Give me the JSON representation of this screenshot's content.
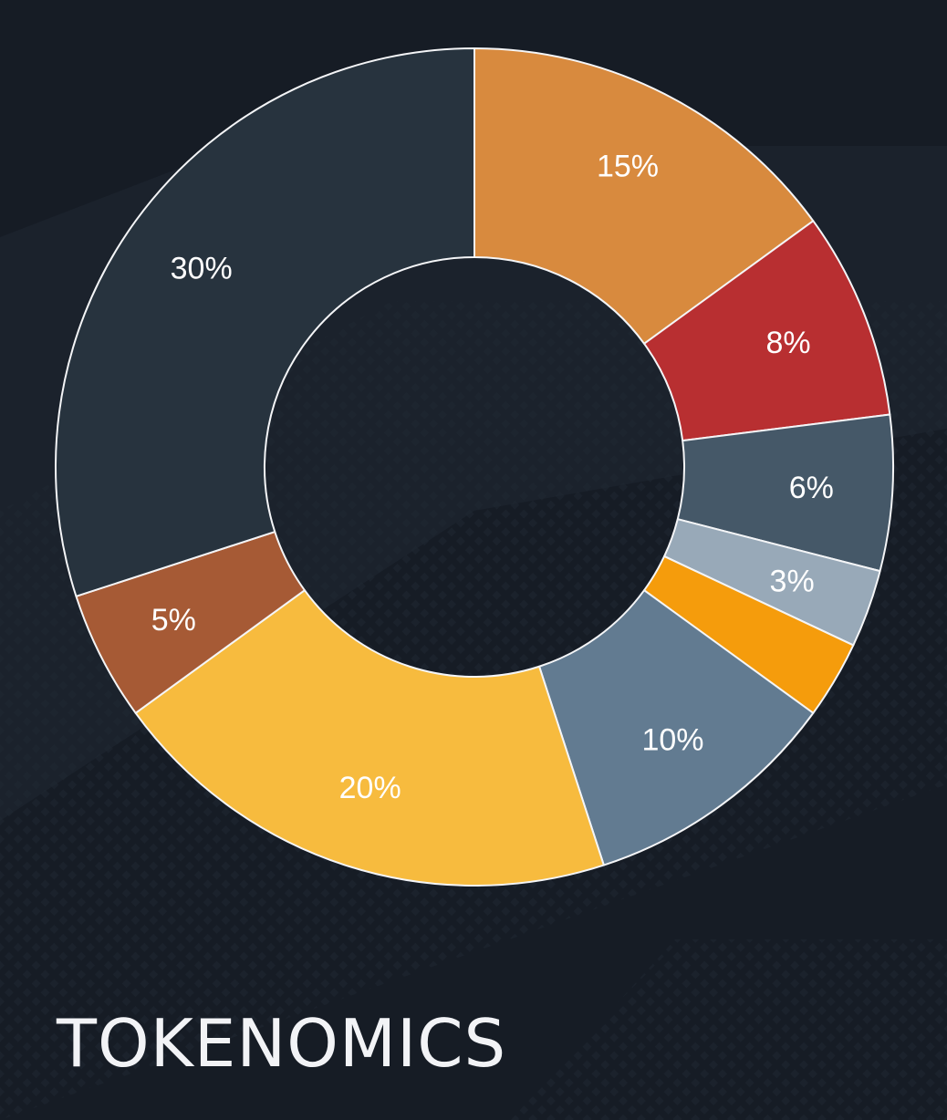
{
  "title": "TOKENOMICS",
  "background_color": "#161c25",
  "chart_data": {
    "type": "pie",
    "style": "donut",
    "start_angle_deg": 0,
    "direction": "clockwise",
    "slices": [
      {
        "value": 15,
        "label": "15%",
        "color": "#d88a3e"
      },
      {
        "value": 8,
        "label": "8%",
        "color": "#b82f31"
      },
      {
        "value": 6,
        "label": "6%",
        "color": "#455868"
      },
      {
        "value": 3,
        "label": "3%",
        "color": "#98a9b8"
      },
      {
        "value": 3,
        "label": "",
        "color": "#f59c0c"
      },
      {
        "value": 10,
        "label": "10%",
        "color": "#627b91"
      },
      {
        "value": 20,
        "label": "20%",
        "color": "#f7bb3e"
      },
      {
        "value": 5,
        "label": "5%",
        "color": "#a65a35"
      },
      {
        "value": 30,
        "label": "30%",
        "color": "#27333e"
      }
    ]
  }
}
